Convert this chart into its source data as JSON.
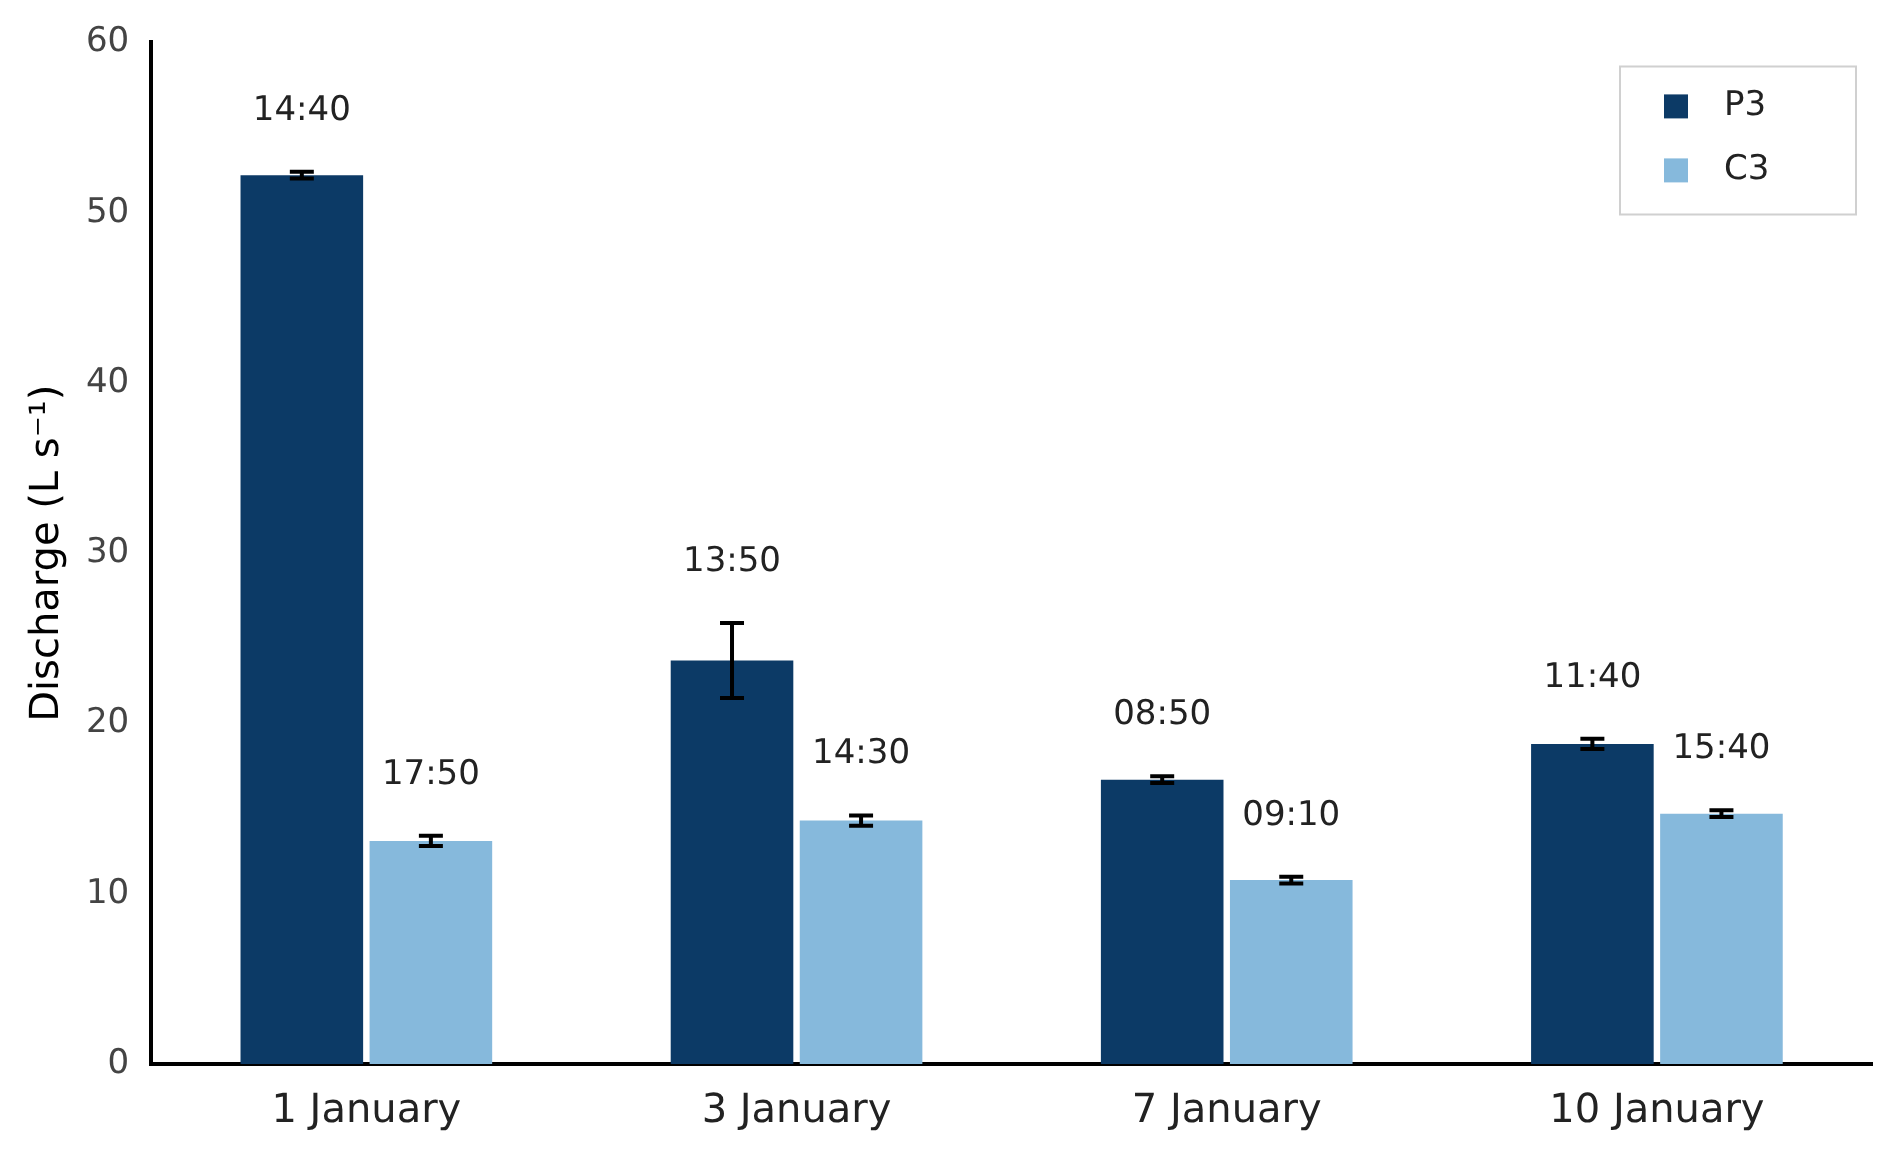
{
  "chart_data": {
    "type": "bar",
    "ylabel": "Discharge (L s⁻¹)",
    "categories": [
      "1 January",
      "3 January",
      "7 January",
      "10 January"
    ],
    "series": [
      {
        "name": "P3",
        "color": "#0c3a66",
        "values": [
          52.2,
          23.7,
          16.7,
          18.8
        ],
        "errors": [
          0.2,
          2.2,
          0.2,
          0.3
        ]
      },
      {
        "name": "C3",
        "color": "#86b9dc",
        "values": [
          13.1,
          14.3,
          10.8,
          14.7
        ],
        "errors": [
          0.3,
          0.3,
          0.2,
          0.2
        ]
      }
    ],
    "annotations": [
      {
        "text": "14:40",
        "x": "1 January",
        "y": 52.2
      },
      {
        "text": "17:50",
        "x": "1 January",
        "y": 13.1
      },
      {
        "text": "13:50",
        "x": "3 January",
        "y": 23.7
      },
      {
        "text": "14:30",
        "x": "3 January",
        "y": 14.3
      },
      {
        "text": "08:50",
        "x": "7 January",
        "y": 16.7
      },
      {
        "text": "09:10",
        "x": "7 January",
        "y": 10.8
      },
      {
        "text": "11:40",
        "x": "10 January",
        "y": 18.8
      },
      {
        "text": "15:40",
        "x": "10 January",
        "y": 14.7
      }
    ],
    "ylim": [
      0,
      60
    ],
    "yticks": [
      0,
      10,
      20,
      30,
      40,
      50,
      60
    ],
    "grid": false,
    "legend": "top right"
  }
}
